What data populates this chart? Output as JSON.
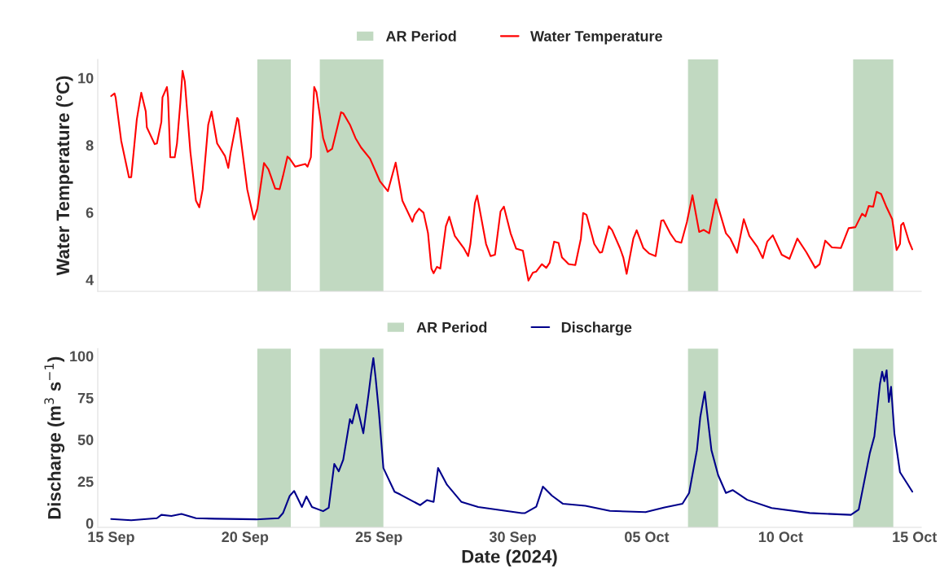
{
  "chart_data": [
    {
      "type": "line",
      "ylabel": "Water Temperature (°C)",
      "xlim": [
        "2024-09-14T12:00",
        "2024-10-15T06:00"
      ],
      "ylim": [
        3.65,
        10.55
      ],
      "yticks": [
        4,
        6,
        8,
        10
      ],
      "tick_labels": "y",
      "legend": "top",
      "bands": [
        {
          "axis": "x",
          "from": "2024-09-20T11:00",
          "to": "2024-09-21T17:00",
          "label": "AR Period",
          "color": "#c1d9c1"
        },
        {
          "axis": "x",
          "from": "2024-09-22T19:00",
          "to": "2024-09-25T04:00",
          "color": "#c1d9c1"
        },
        {
          "axis": "x",
          "from": "2024-10-06T13:00",
          "to": "2024-10-07T16:00",
          "color": "#c1d9c1"
        },
        {
          "axis": "x",
          "from": "2024-10-12T17:00",
          "to": "2024-10-14T05:00",
          "color": "#c1d9c1"
        }
      ],
      "series": [
        {
          "name": "Water Temperature",
          "color": "#ff0000",
          "x": [
            "2024-09-15T00:00",
            "2024-09-15T03:00",
            "2024-09-15T04:00",
            "2024-09-15T09:00",
            "2024-09-15T16:00",
            "2024-09-15T18:00",
            "2024-09-15T23:00",
            "2024-09-16T03:00",
            "2024-09-16T07:00",
            "2024-09-16T08:00",
            "2024-09-16T15:00",
            "2024-09-16T17:00",
            "2024-09-16T21:00",
            "2024-09-16T22:00",
            "2024-09-17T02:00",
            "2024-09-17T03:00",
            "2024-09-17T05:00",
            "2024-09-17T09:00",
            "2024-09-17T11:00",
            "2024-09-17T14:00",
            "2024-09-17T16:00",
            "2024-09-17T18:00",
            "2024-09-17T23:00",
            "2024-09-18T04:00",
            "2024-09-18T07:00",
            "2024-09-18T10:00",
            "2024-09-18T15:00",
            "2024-09-18T18:00",
            "2024-09-18T23:00",
            "2024-09-19T06:00",
            "2024-09-19T09:00",
            "2024-09-19T11:00",
            "2024-09-19T17:00",
            "2024-09-19T18:00",
            "2024-09-20T02:00",
            "2024-09-20T08:00",
            "2024-09-20T11:00",
            "2024-09-20T17:00",
            "2024-09-20T21:00",
            "2024-09-21T03:00",
            "2024-09-21T07:00",
            "2024-09-21T10:00",
            "2024-09-21T14:00",
            "2024-09-21T16:00",
            "2024-09-21T21:00",
            "2024-09-22T01:00",
            "2024-09-22T06:00",
            "2024-09-22T08:00",
            "2024-09-22T11:00",
            "2024-09-22T14:00",
            "2024-09-22T16:00",
            "2024-09-22T22:00",
            "2024-09-23T02:00",
            "2024-09-23T06:00",
            "2024-09-23T14:00",
            "2024-09-23T16:00",
            "2024-09-23T22:00",
            "2024-09-24T03:00",
            "2024-09-24T08:00",
            "2024-09-24T16:00",
            "2024-09-25T01:00",
            "2024-09-25T08:00",
            "2024-09-25T15:00",
            "2024-09-25T21:00",
            "2024-09-26T06:00",
            "2024-09-26T08:00",
            "2024-09-26T12:00",
            "2024-09-26T16:00",
            "2024-09-26T20:00",
            "2024-09-26T23:00",
            "2024-09-27T01:00",
            "2024-09-27T04:00",
            "2024-09-27T07:00",
            "2024-09-27T12:00",
            "2024-09-27T15:00",
            "2024-09-27T20:00",
            "2024-09-28T04:00",
            "2024-09-28T08:00",
            "2024-09-28T10:00",
            "2024-09-28T14:00",
            "2024-09-28T16:00",
            "2024-09-29T00:00",
            "2024-09-29T04:00",
            "2024-09-29T08:00",
            "2024-09-29T13:00",
            "2024-09-29T16:00",
            "2024-09-29T22:00",
            "2024-09-30T03:00",
            "2024-09-30T09:00",
            "2024-09-30T14:00",
            "2024-09-30T18:00",
            "2024-09-30T21:00",
            "2024-10-01T02:00",
            "2024-10-01T06:00",
            "2024-10-01T09:00",
            "2024-10-01T13:00",
            "2024-10-01T17:00",
            "2024-10-01T20:00",
            "2024-10-02T02:00",
            "2024-10-02T08:00",
            "2024-10-02T13:00",
            "2024-10-02T15:00",
            "2024-10-02T18:00",
            "2024-10-03T01:00",
            "2024-10-03T06:00",
            "2024-10-03T08:00",
            "2024-10-03T14:00",
            "2024-10-03T17:00",
            "2024-10-04T00:00",
            "2024-10-04T03:00",
            "2024-10-04T06:00",
            "2024-10-04T12:00",
            "2024-10-04T15:00",
            "2024-10-04T21:00",
            "2024-10-05T02:00",
            "2024-10-05T08:00",
            "2024-10-05T13:00",
            "2024-10-05T15:00",
            "2024-10-05T21:00",
            "2024-10-06T02:00",
            "2024-10-06T07:00",
            "2024-10-06T12:00",
            "2024-10-06T17:00",
            "2024-10-06T23:00",
            "2024-10-07T03:00",
            "2024-10-07T08:00",
            "2024-10-07T14:00",
            "2024-10-07T23:00",
            "2024-10-08T03:00",
            "2024-10-08T09:00",
            "2024-10-08T15:00",
            "2024-10-08T20:00",
            "2024-10-09T03:00",
            "2024-10-09T08:00",
            "2024-10-09T12:00",
            "2024-10-09T17:00",
            "2024-10-10T01:00",
            "2024-10-10T08:00",
            "2024-10-10T15:00",
            "2024-10-10T23:00",
            "2024-10-11T07:00",
            "2024-10-11T11:00",
            "2024-10-11T16:00",
            "2024-10-11T22:00",
            "2024-10-12T06:00",
            "2024-10-12T13:00",
            "2024-10-12T19:00",
            "2024-10-13T01:00",
            "2024-10-13T04:00",
            "2024-10-13T07:00",
            "2024-10-13T11:00",
            "2024-10-13T14:00",
            "2024-10-13T18:00",
            "2024-10-13T23:00",
            "2024-10-14T04:00",
            "2024-10-14T08:00",
            "2024-10-14T11:00",
            "2024-10-14T12:00",
            "2024-10-14T14:00",
            "2024-10-14T19:00",
            "2024-10-14T22:00"
          ],
          "values": [
            9.46,
            9.54,
            9.42,
            8.13,
            7.04,
            7.05,
            8.77,
            9.56,
            9.01,
            8.53,
            8.03,
            8.05,
            8.69,
            9.42,
            9.73,
            9.42,
            7.64,
            7.64,
            8.05,
            9.26,
            10.21,
            9.9,
            7.8,
            6.35,
            6.15,
            6.68,
            8.61,
            9.0,
            8.05,
            7.68,
            7.32,
            7.77,
            8.81,
            8.76,
            6.68,
            5.79,
            6.11,
            7.47,
            7.28,
            6.71,
            6.69,
            7.08,
            7.66,
            7.6,
            7.36,
            7.4,
            7.44,
            7.36,
            7.64,
            9.73,
            9.58,
            8.21,
            7.8,
            7.89,
            8.98,
            8.95,
            8.61,
            8.21,
            7.93,
            7.6,
            6.92,
            6.63,
            7.48,
            6.35,
            5.72,
            5.93,
            6.11,
            5.99,
            5.38,
            4.33,
            4.19,
            4.38,
            4.33,
            5.59,
            5.87,
            5.3,
            4.94,
            4.7,
            5.06,
            6.27,
            6.5,
            5.06,
            4.7,
            4.74,
            6.03,
            6.17,
            5.38,
            4.92,
            4.86,
            3.97,
            4.21,
            4.24,
            4.46,
            4.35,
            4.5,
            5.13,
            5.09,
            4.66,
            4.46,
            4.43,
            5.22,
            5.98,
            5.93,
            5.06,
            4.8,
            4.82,
            5.59,
            5.47,
            4.94,
            4.66,
            4.17,
            5.22,
            5.47,
            4.94,
            4.78,
            4.7,
            5.75,
            5.77,
            5.38,
            5.14,
            5.1,
            5.71,
            6.51,
            5.42,
            5.48,
            5.38,
            6.39,
            5.38,
            5.22,
            4.8,
            5.8,
            5.3,
            4.98,
            4.64,
            5.13,
            5.32,
            4.74,
            4.62,
            5.22,
            4.82,
            4.35,
            4.46,
            5.16,
            4.96,
            4.94,
            5.53,
            5.56,
            5.96,
            5.88,
            6.19,
            6.17,
            6.61,
            6.55,
            6.15,
            5.8,
            4.88,
            5.06,
            5.62,
            5.69,
            5.14,
            4.9
          ]
        }
      ]
    },
    {
      "type": "line",
      "xlabel": "Date (2024)",
      "ylabel": "Discharge (m$^{3}$ s$^{−1}$)",
      "xlim": [
        "2024-09-14T12:00",
        "2024-10-15T06:00"
      ],
      "xticks": [
        {
          "value": "2024-09-15",
          "label": "15 Sep"
        },
        {
          "value": "2024-09-20",
          "label": "20 Sep"
        },
        {
          "value": "2024-09-25",
          "label": "25 Sep"
        },
        {
          "value": "2024-09-30",
          "label": "30 Sep"
        },
        {
          "value": "2024-10-05",
          "label": "05 Oct"
        },
        {
          "value": "2024-10-10",
          "label": "10 Oct"
        },
        {
          "value": "2024-10-15",
          "label": "15 Oct"
        }
      ],
      "ylim": [
        -2.5,
        104.5
      ],
      "yticks": [
        0,
        25,
        50,
        75,
        100
      ],
      "legend": "top",
      "bands": [
        {
          "axis": "x",
          "from": "2024-09-20T11:00",
          "to": "2024-09-21T17:00",
          "label": "AR Period",
          "color": "#c1d9c1"
        },
        {
          "axis": "x",
          "from": "2024-09-22T19:00",
          "to": "2024-09-25T04:00",
          "color": "#c1d9c1"
        },
        {
          "axis": "x",
          "from": "2024-10-06T13:00",
          "to": "2024-10-07T16:00",
          "color": "#c1d9c1"
        },
        {
          "axis": "x",
          "from": "2024-10-12T17:00",
          "to": "2024-10-14T05:00",
          "color": "#c1d9c1"
        }
      ],
      "series": [
        {
          "name": "Discharge",
          "color": "#00008b",
          "x": [
            "2024-09-15T00:00",
            "2024-09-15T18:00",
            "2024-09-16T17:00",
            "2024-09-16T21:00",
            "2024-09-17T06:00",
            "2024-09-17T15:00",
            "2024-09-18T04:00",
            "2024-09-18T21:00",
            "2024-09-20T10:00",
            "2024-09-21T06:00",
            "2024-09-21T10:00",
            "2024-09-21T16:00",
            "2024-09-21T20:00",
            "2024-09-22T03:00",
            "2024-09-22T07:00",
            "2024-09-22T12:00",
            "2024-09-22T22:00",
            "2024-09-23T03:00",
            "2024-09-23T08:00",
            "2024-09-23T12:00",
            "2024-09-23T16:00",
            "2024-09-23T22:00",
            "2024-09-24T00:00",
            "2024-09-24T04:00",
            "2024-09-24T10:00",
            "2024-09-24T15:00",
            "2024-09-24T17:00",
            "2024-09-24T19:00",
            "2024-09-24T21:00",
            "2024-09-25T00:00",
            "2024-09-25T04:00",
            "2024-09-25T14:00",
            "2024-09-25T19:00",
            "2024-09-26T13:00",
            "2024-09-26T19:00",
            "2024-09-27T01:00",
            "2024-09-27T05:00",
            "2024-09-27T13:00",
            "2024-09-28T02:00",
            "2024-09-28T17:00",
            "2024-09-30T08:00",
            "2024-09-30T11:00",
            "2024-09-30T21:00",
            "2024-10-01T03:00",
            "2024-10-01T11:00",
            "2024-10-01T21:00",
            "2024-10-02T17:00",
            "2024-10-03T15:00",
            "2024-10-04T23:00",
            "2024-10-05T16:00",
            "2024-10-06T08:00",
            "2024-10-06T14:00",
            "2024-10-06T21:00",
            "2024-10-07T00:00",
            "2024-10-07T04:00",
            "2024-10-07T06:00",
            "2024-10-07T10:00",
            "2024-10-07T16:00",
            "2024-10-07T23:00",
            "2024-10-08T05:00",
            "2024-10-08T18:00",
            "2024-10-09T16:00",
            "2024-10-11T02:00",
            "2024-10-12T15:00",
            "2024-10-12T22:00",
            "2024-10-13T08:00",
            "2024-10-13T12:00",
            "2024-10-13T17:00",
            "2024-10-13T19:00",
            "2024-10-13T21:00",
            "2024-10-13T23:00",
            "2024-10-14T01:00",
            "2024-10-14T03:00",
            "2024-10-14T06:00",
            "2024-10-14T11:00",
            "2024-10-14T22:00"
          ],
          "values": [
            2.5,
            1.8,
            3.0,
            5.0,
            4.3,
            5.5,
            3.0,
            2.7,
            2.3,
            3.0,
            6.0,
            16.3,
            19.3,
            9.7,
            16.0,
            9.7,
            7.2,
            9.3,
            35.5,
            31.0,
            38.0,
            62.2,
            59.7,
            71.0,
            53.8,
            78.8,
            89.6,
            98.8,
            87.1,
            66.3,
            33.0,
            18.8,
            17.2,
            10.8,
            13.8,
            12.7,
            33.0,
            23.0,
            12.7,
            9.7,
            6.0,
            6.1,
            9.9,
            21.9,
            16.5,
            11.6,
            10.4,
            7.4,
            6.6,
            9.4,
            11.6,
            18.1,
            43.7,
            63.5,
            78.6,
            66.7,
            43.7,
            28.8,
            18.1,
            19.8,
            14.0,
            9.1,
            6.1,
            5.0,
            8.2,
            42.0,
            51.9,
            83.2,
            90.6,
            84.9,
            91.5,
            72.5,
            81.6,
            53.5,
            30.5,
            18.9
          ]
        }
      ]
    }
  ]
}
